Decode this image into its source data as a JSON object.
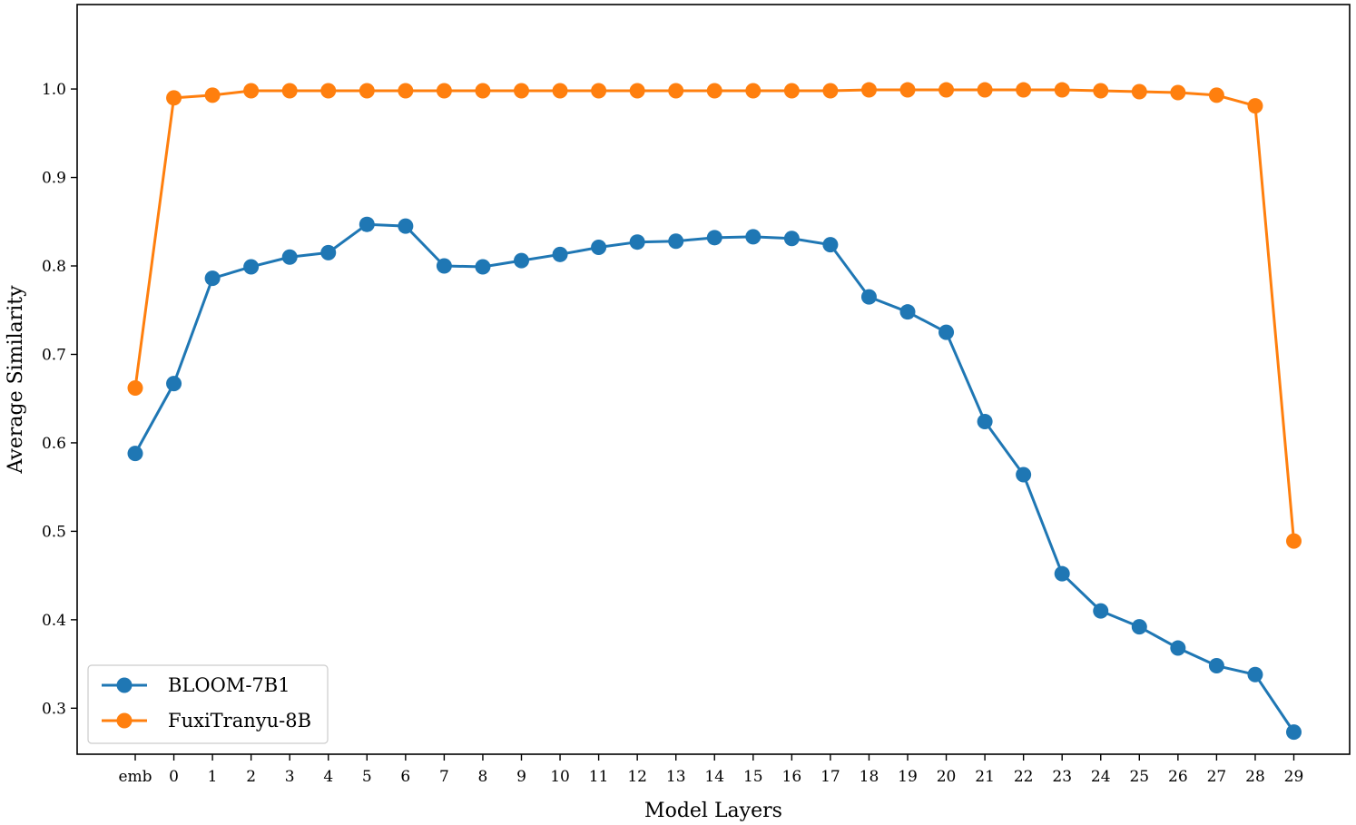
{
  "chart_data": {
    "type": "line",
    "xlabel": "Model Layers",
    "ylabel": "Average Similarity",
    "categories": [
      "emb",
      "0",
      "1",
      "2",
      "3",
      "4",
      "5",
      "6",
      "7",
      "8",
      "9",
      "10",
      "11",
      "12",
      "13",
      "14",
      "15",
      "16",
      "17",
      "18",
      "19",
      "20",
      "21",
      "22",
      "23",
      "24",
      "25",
      "26",
      "27",
      "28",
      "29"
    ],
    "ylim": [
      0.248,
      1.0955
    ],
    "yticks": [
      "0.3",
      "0.4",
      "0.5",
      "0.6",
      "0.7",
      "0.8",
      "0.9",
      "1.0"
    ],
    "grid": false,
    "legend": "bottom-left",
    "series": [
      {
        "name": "BLOOM-7B1",
        "color": "#1f77b4",
        "values": [
          0.588,
          0.667,
          0.786,
          0.799,
          0.81,
          0.815,
          0.847,
          0.845,
          0.8,
          0.799,
          0.806,
          0.813,
          0.821,
          0.827,
          0.828,
          0.832,
          0.833,
          0.831,
          0.824,
          0.765,
          0.748,
          0.725,
          0.624,
          0.564,
          0.452,
          0.41,
          0.392,
          0.368,
          0.348,
          0.338,
          0.273
        ]
      },
      {
        "name": "FuxiTranyu-8B",
        "color": "#ff7f0e",
        "values": [
          0.662,
          0.99,
          0.993,
          0.998,
          0.998,
          0.998,
          0.998,
          0.998,
          0.998,
          0.998,
          0.998,
          0.998,
          0.998,
          0.998,
          0.998,
          0.998,
          0.998,
          0.998,
          0.998,
          0.999,
          0.999,
          0.999,
          0.999,
          0.999,
          0.999,
          0.998,
          0.997,
          0.996,
          0.993,
          0.981,
          0.489
        ]
      }
    ]
  }
}
